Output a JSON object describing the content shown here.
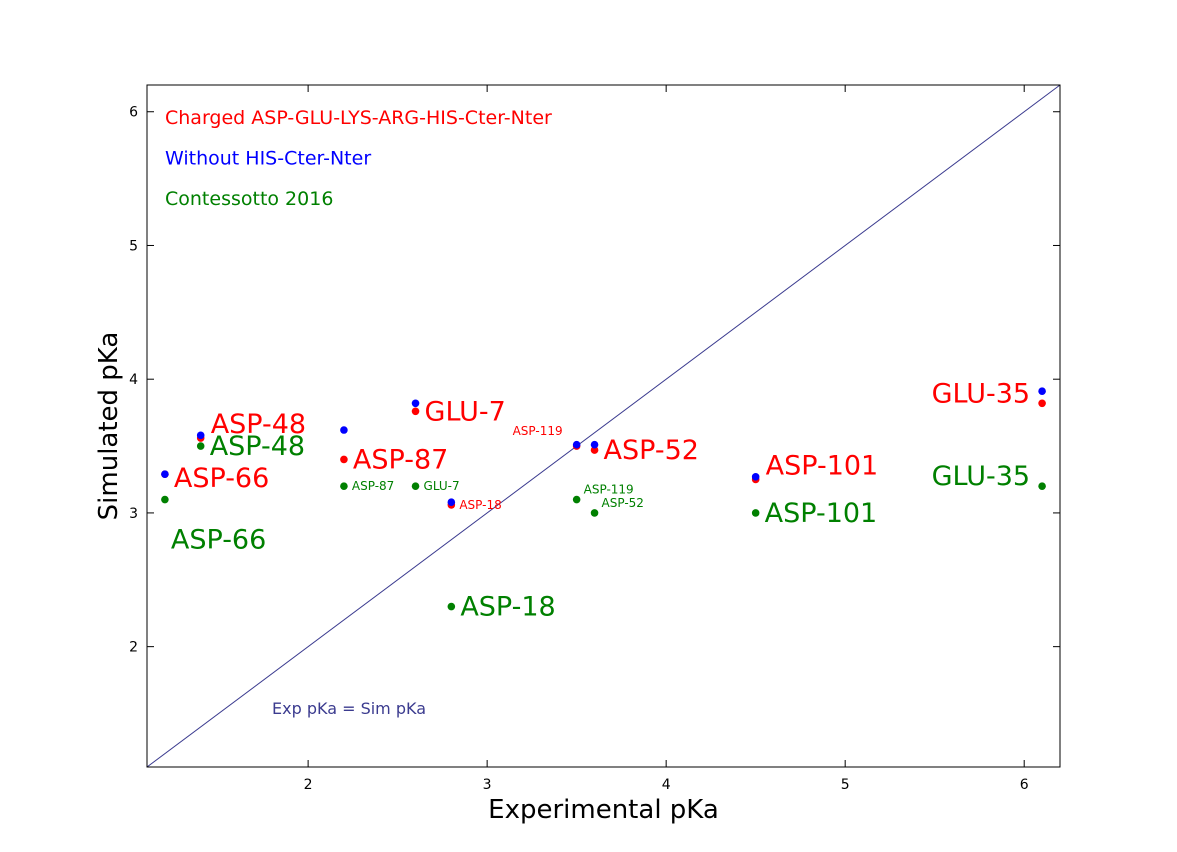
{
  "chart_data": {
    "type": "scatter",
    "xlabel": "Experimental pKa",
    "ylabel": "Simulated pKa",
    "xlim": [
      1.1,
      6.2
    ],
    "ylim": [
      1.1,
      6.2
    ],
    "xticks": [
      2,
      3,
      4,
      5,
      6
    ],
    "yticks": [
      2,
      3,
      4,
      5,
      6
    ],
    "grid": false,
    "legend_position": "top-left",
    "series": [
      {
        "name": "Charged ASP-GLU-LYS-ARG-HIS-Cter-Nter",
        "color": "#ff0000",
        "points": [
          {
            "x": 1.2,
            "y": 3.29,
            "label": "ASP-66",
            "label_size": "large",
            "label_side": "right-below"
          },
          {
            "x": 1.4,
            "y": 3.56,
            "label": "ASP-48",
            "label_size": "large",
            "label_side": "right-above"
          },
          {
            "x": 2.2,
            "y": 3.4,
            "label": "ASP-87",
            "label_size": "large",
            "label_side": "right"
          },
          {
            "x": 2.6,
            "y": 3.76,
            "label": "GLU-7",
            "label_size": "large",
            "label_side": "right"
          },
          {
            "x": 2.8,
            "y": 3.06,
            "label": "ASP-18",
            "label_size": "small",
            "label_side": "right"
          },
          {
            "x": 3.5,
            "y": 3.5,
            "label": "ASP-119",
            "label_size": "small",
            "label_side": "left-above"
          },
          {
            "x": 3.6,
            "y": 3.47,
            "label": "ASP-52",
            "label_size": "large",
            "label_side": "right"
          },
          {
            "x": 4.5,
            "y": 3.25,
            "label": "ASP-101",
            "label_size": "large",
            "label_side": "right-above"
          },
          {
            "x": 6.1,
            "y": 3.82,
            "label": "GLU-35",
            "label_size": "large",
            "label_side": "left"
          }
        ]
      },
      {
        "name": "Without HIS-Cter-Nter",
        "color": "#0000ff",
        "points": [
          {
            "x": 1.2,
            "y": 3.29
          },
          {
            "x": 1.4,
            "y": 3.58
          },
          {
            "x": 2.2,
            "y": 3.62
          },
          {
            "x": 2.6,
            "y": 3.82
          },
          {
            "x": 2.8,
            "y": 3.08
          },
          {
            "x": 3.5,
            "y": 3.51
          },
          {
            "x": 3.6,
            "y": 3.51
          },
          {
            "x": 4.5,
            "y": 3.27
          },
          {
            "x": 6.1,
            "y": 3.91
          }
        ]
      },
      {
        "name": "Contessotto 2016",
        "color": "#008000",
        "points": [
          {
            "x": 1.2,
            "y": 3.1,
            "label": "ASP-66",
            "label_size": "large",
            "label_side": "below"
          },
          {
            "x": 1.4,
            "y": 3.5,
            "label": "ASP-48",
            "label_size": "large",
            "label_side": "right"
          },
          {
            "x": 2.2,
            "y": 3.2,
            "label": "ASP-87",
            "label_size": "small",
            "label_side": "right"
          },
          {
            "x": 2.6,
            "y": 3.2,
            "label": "GLU-7",
            "label_size": "small",
            "label_side": "right"
          },
          {
            "x": 2.8,
            "y": 2.3,
            "label": "ASP-18",
            "label_size": "large",
            "label_side": "right"
          },
          {
            "x": 3.5,
            "y": 3.1,
            "label": "ASP-119",
            "label_size": "small",
            "label_side": "right-above"
          },
          {
            "x": 3.6,
            "y": 3.0,
            "label": "ASP-52",
            "label_size": "small",
            "label_side": "right-above"
          },
          {
            "x": 4.5,
            "y": 3.0,
            "label": "ASP-101",
            "label_size": "large",
            "label_side": "right"
          },
          {
            "x": 6.1,
            "y": 3.2,
            "label": "GLU-35",
            "label_size": "large",
            "label_side": "left"
          }
        ]
      }
    ],
    "reference_line": {
      "label": "Exp pKa = Sim pKa",
      "color": "#3b3b8f",
      "from": [
        1.1,
        1.1
      ],
      "to": [
        6.2,
        6.2
      ]
    }
  }
}
